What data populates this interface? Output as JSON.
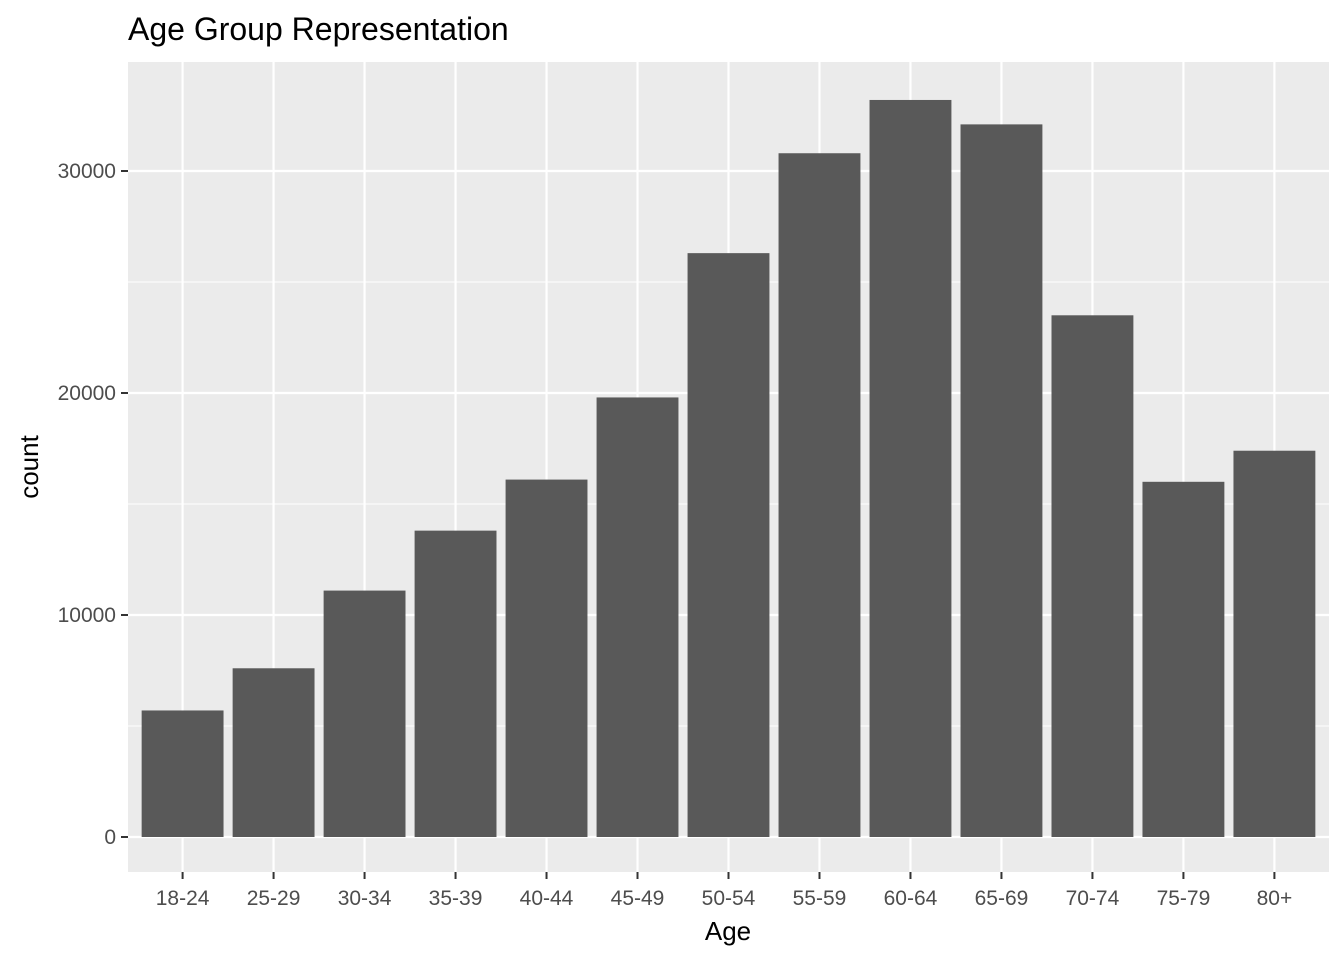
{
  "chart_data": {
    "type": "bar",
    "title": "Age Group Representation",
    "xlabel": "Age",
    "ylabel": "count",
    "categories": [
      "18-24",
      "25-29",
      "30-34",
      "35-39",
      "40-44",
      "45-49",
      "50-54",
      "55-59",
      "60-64",
      "65-69",
      "70-74",
      "75-79",
      "80+"
    ],
    "values": [
      5700,
      7600,
      11100,
      13800,
      16100,
      19800,
      26300,
      30800,
      33200,
      32100,
      23500,
      16000,
      17400
    ],
    "ylim": [
      0,
      33400
    ],
    "yticks": [
      0,
      10000,
      20000,
      30000
    ],
    "grid": true,
    "colors": {
      "bar": "#595959",
      "panel": "#ebebeb",
      "grid": "#ffffff"
    }
  }
}
